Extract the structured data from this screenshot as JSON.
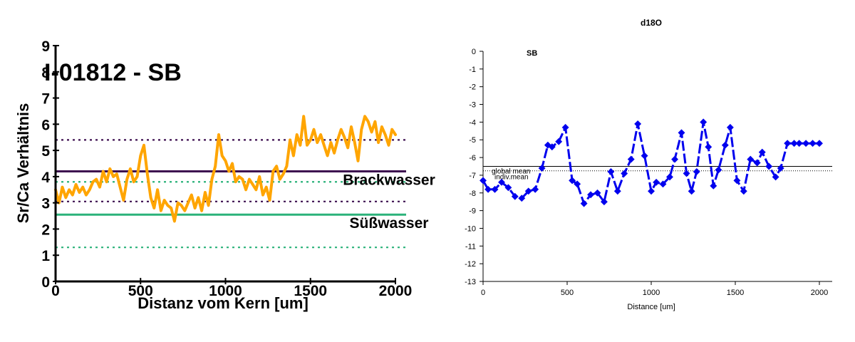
{
  "chart_data": [
    {
      "type": "line",
      "title": "I-01812 - SB",
      "xlabel": "Distanz vom Kern [um]",
      "ylabel": "Sr/Ca Verhältnis",
      "xlim": [
        0,
        2000
      ],
      "ylim": [
        0,
        9
      ],
      "xticks": [
        "0",
        "500",
        "1000",
        "1500",
        "2000"
      ],
      "yticks": [
        "0",
        "1",
        "2",
        "3",
        "4",
        "5",
        "6",
        "7",
        "8",
        "9"
      ],
      "grid": false,
      "colors": {
        "series": "#FFA500",
        "brack": "#3D0F50",
        "suess": "#2BB27A"
      },
      "reference_lines": [
        {
          "name": "Brackwasser",
          "y": 4.2,
          "style": "solid",
          "color": "#3D0F50",
          "label": "Brackwasser"
        },
        {
          "name": "brack_upper",
          "y": 5.4,
          "style": "dotted",
          "color": "#3D0F50"
        },
        {
          "name": "brack_lower",
          "y": 3.05,
          "style": "dotted",
          "color": "#3D0F50"
        },
        {
          "name": "Süßwasser",
          "y": 2.55,
          "style": "solid",
          "color": "#2BB27A",
          "label": "Süßwasser"
        },
        {
          "name": "suess_upper",
          "y": 3.8,
          "style": "dotted",
          "color": "#2BB27A"
        },
        {
          "name": "suess_lower",
          "y": 1.3,
          "style": "dotted",
          "color": "#2BB27A"
        }
      ],
      "series": [
        {
          "x": [
            0,
            20,
            40,
            60,
            80,
            100,
            120,
            140,
            160,
            180,
            200,
            220,
            240,
            260,
            280,
            300,
            320,
            340,
            360,
            380,
            400,
            420,
            440,
            460,
            480,
            500,
            520,
            540,
            560,
            580,
            600,
            620,
            640,
            660,
            680,
            700,
            720,
            740,
            760,
            780,
            800,
            820,
            840,
            860,
            880,
            900,
            920,
            940,
            960,
            980,
            1000,
            1020,
            1040,
            1060,
            1080,
            1100,
            1120,
            1140,
            1160,
            1180,
            1200,
            1220,
            1240,
            1260,
            1280,
            1300,
            1320,
            1340,
            1360,
            1380,
            1400,
            1420,
            1440,
            1460,
            1480,
            1500,
            1520,
            1540,
            1560,
            1580,
            1600,
            1620,
            1640,
            1660,
            1680,
            1700,
            1720,
            1740,
            1760,
            1780,
            1800,
            1820,
            1840,
            1860,
            1880,
            1900,
            1920,
            1940,
            1960,
            1980,
            2000
          ],
          "y": [
            3.5,
            3.0,
            3.6,
            3.2,
            3.5,
            3.3,
            3.7,
            3.4,
            3.6,
            3.3,
            3.5,
            3.8,
            3.9,
            3.6,
            4.2,
            3.8,
            4.3,
            4.0,
            4.1,
            3.6,
            3.1,
            3.9,
            4.3,
            3.8,
            4.0,
            4.8,
            5.2,
            4.1,
            3.2,
            2.8,
            3.5,
            2.7,
            3.1,
            2.9,
            2.8,
            2.3,
            3.0,
            2.9,
            2.7,
            3.0,
            3.3,
            2.8,
            3.2,
            2.7,
            3.4,
            2.9,
            3.9,
            4.4,
            5.6,
            4.8,
            4.6,
            4.2,
            4.5,
            3.8,
            4.0,
            3.9,
            3.5,
            3.9,
            3.7,
            3.5,
            4.0,
            3.3,
            3.6,
            3.1,
            4.2,
            4.4,
            3.9,
            4.1,
            4.4,
            5.4,
            4.8,
            5.6,
            5.2,
            6.3,
            5.2,
            5.4,
            5.8,
            5.3,
            5.6,
            5.2,
            4.8,
            5.3,
            4.9,
            5.4,
            5.8,
            5.5,
            5.1,
            5.9,
            5.3,
            4.6,
            5.8,
            6.3,
            6.1,
            5.7,
            6.1,
            5.3,
            5.9,
            5.6,
            5.2,
            5.8,
            5.6
          ]
        }
      ]
    },
    {
      "type": "line",
      "title": "d18O",
      "xlabel": "Distance [um]",
      "ylabel": "",
      "xlim": [
        0,
        2000
      ],
      "ylim": [
        -13,
        0
      ],
      "xticks": [
        "0",
        "500",
        "1000",
        "1500",
        "2000"
      ],
      "yticks": [
        "0",
        "-1",
        "-2",
        "-3",
        "-4",
        "-5",
        "-6",
        "-7",
        "-8",
        "-9",
        "-10",
        "-11",
        "-12",
        "-13"
      ],
      "grid": false,
      "legend": "SB",
      "colors": {
        "series": "#0000EE"
      },
      "reference_lines": [
        {
          "name": "global mean",
          "y": -6.5,
          "style": "solid",
          "color": "#000000",
          "label": "global mean"
        },
        {
          "name": "indiv.mean",
          "y": -6.75,
          "style": "dotted",
          "color": "#000000",
          "label": "indiv.mean"
        }
      ],
      "series": [
        {
          "name": "SB",
          "x": [
            0,
            30,
            70,
            110,
            150,
            190,
            230,
            270,
            310,
            350,
            385,
            410,
            450,
            490,
            530,
            560,
            600,
            640,
            680,
            720,
            760,
            800,
            840,
            880,
            920,
            960,
            1000,
            1030,
            1070,
            1110,
            1140,
            1180,
            1210,
            1240,
            1270,
            1310,
            1340,
            1370,
            1400,
            1440,
            1470,
            1510,
            1550,
            1590,
            1630,
            1660,
            1700,
            1740,
            1770,
            1810,
            1850,
            1880,
            1920,
            1960,
            2000
          ],
          "y": [
            -7.3,
            -7.8,
            -7.8,
            -7.4,
            -7.7,
            -8.2,
            -8.3,
            -7.9,
            -7.8,
            -6.6,
            -5.3,
            -5.4,
            -5.1,
            -4.3,
            -7.3,
            -7.5,
            -8.6,
            -8.1,
            -8.0,
            -8.5,
            -6.8,
            -7.9,
            -6.9,
            -6.1,
            -4.1,
            -5.9,
            -7.9,
            -7.4,
            -7.5,
            -7.1,
            -6.1,
            -4.6,
            -6.9,
            -7.9,
            -6.8,
            -4.0,
            -5.4,
            -7.6,
            -6.7,
            -5.3,
            -4.3,
            -7.3,
            -7.9,
            -6.1,
            -6.3,
            -5.7,
            -6.5,
            -7.1,
            -6.6,
            -5.2,
            -5.2,
            -5.2,
            -5.2,
            -5.2,
            -5.2
          ]
        }
      ]
    }
  ]
}
